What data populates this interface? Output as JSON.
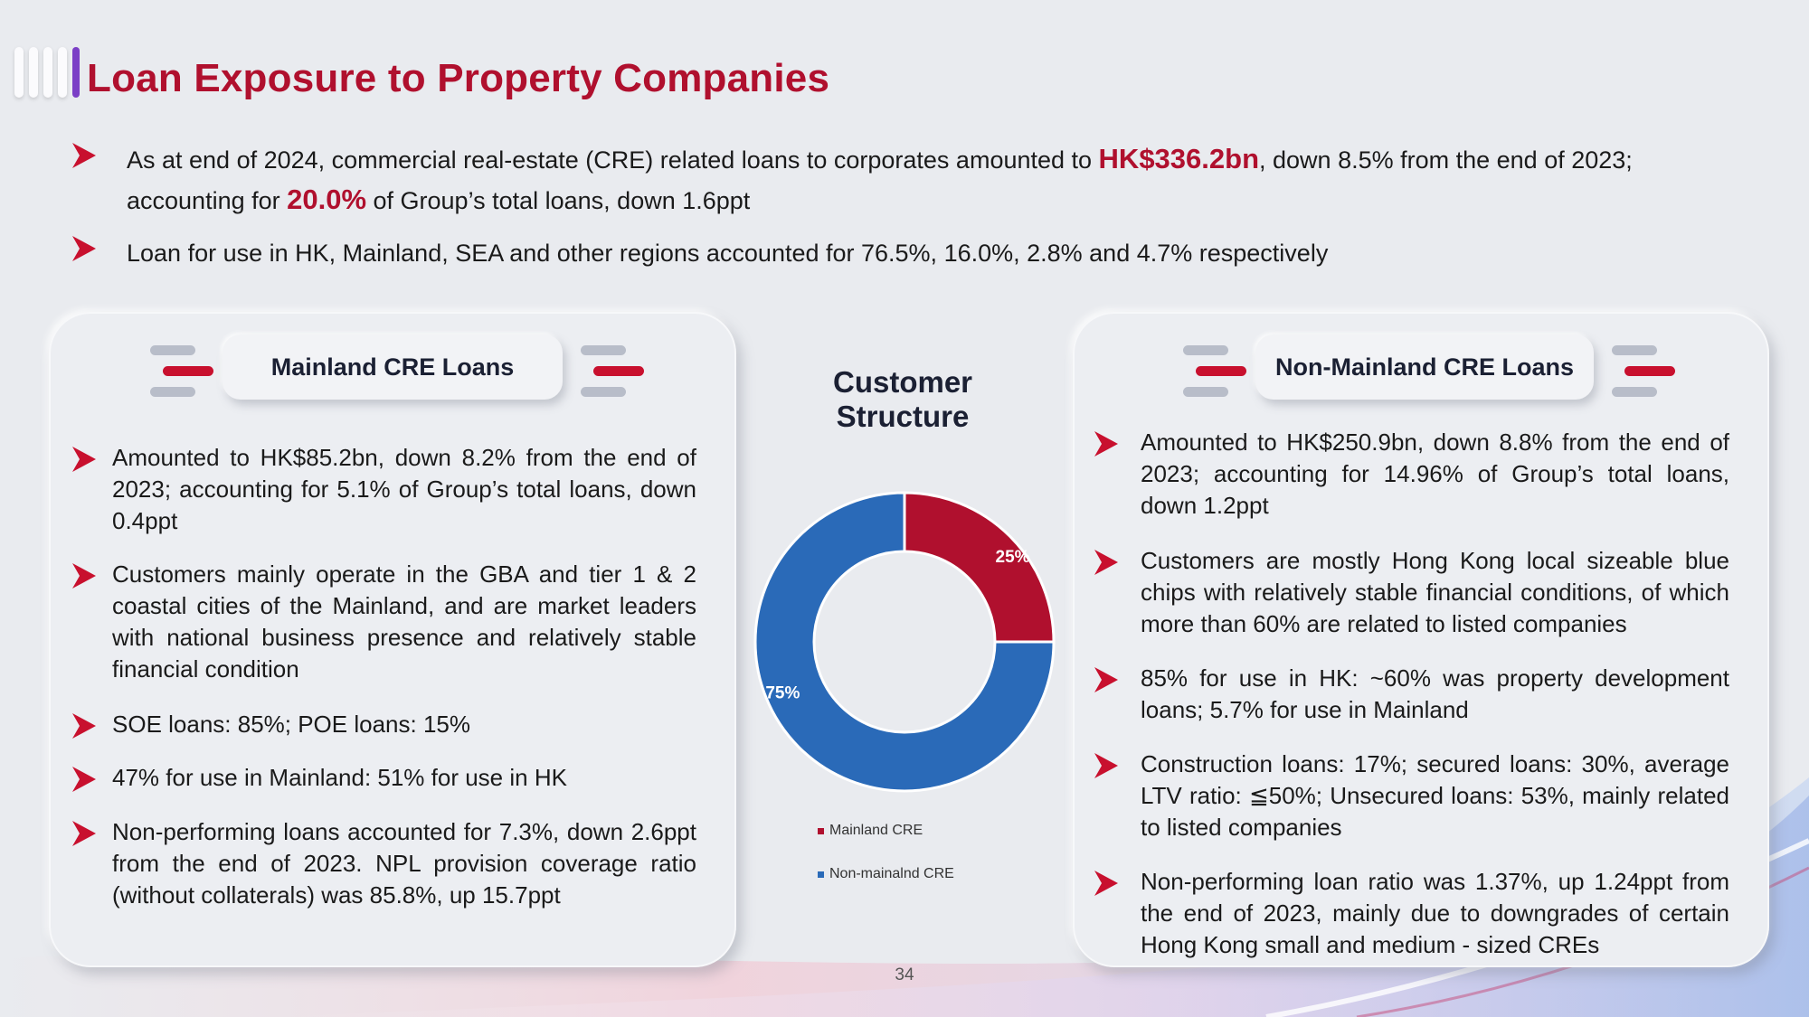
{
  "page": {
    "title": "Loan Exposure to Property Companies",
    "page_number": "34"
  },
  "top_bullets": [
    {
      "pre": "As at end of 2024, commercial real-estate (CRE) related loans to corporates amounted to ",
      "hl1": "HK$336.2bn",
      "mid": ", down 8.5% from the end of 2023; accounting for ",
      "hl2": "20.0%",
      "post": " of Group’s total loans, down 1.6ppt"
    },
    {
      "text": "Loan for use in HK, Mainland, SEA and other regions accounted for 76.5%, 16.0%, 2.8% and 4.7% respectively"
    }
  ],
  "left_panel": {
    "title": "Mainland CRE Loans",
    "bullets": [
      "Amounted to HK$85.2bn, down 8.2% from the end of 2023; accounting for 5.1% of Group’s total loans, down 0.4ppt",
      "Customers mainly operate in the GBA and tier 1 & 2 coastal cities of the Mainland, and are market leaders with national business presence and relatively stable financial condition",
      "SOE loans: 85%; POE loans: 15%",
      "47% for use in Mainland: 51% for use in HK",
      "Non-performing loans accounted for 7.3%, down 2.6ppt from the end of 2023. NPL provision coverage ratio (without collaterals) was 85.8%, up 15.7ppt"
    ]
  },
  "right_panel": {
    "title": "Non-Mainland CRE Loans",
    "bullets": [
      "Amounted to HK$250.9bn, down 8.8% from the end of 2023; accounting for 14.96% of Group’s total loans, down 1.2ppt",
      "Customers are mostly Hong Kong local sizeable blue chips with relatively stable financial conditions, of which more than 60% are related to listed companies",
      "85% for use in HK: ~60% was property development loans; 5.7% for use in Mainland",
      "Construction loans: 17%; secured loans: 30%, average LTV ratio: ≦50%; Unsecured loans: 53%, mainly related to listed companies",
      "Non-performing loan ratio was 1.37%, up 1.24ppt from the end of 2023, mainly due to downgrades of certain Hong Kong small and medium - sized CREs"
    ]
  },
  "chart_data": {
    "type": "pie",
    "title": "Customer Structure",
    "categories": [
      "Mainland CRE",
      "Non-mainalnd CRE"
    ],
    "values": [
      25,
      75
    ],
    "labels": [
      "25%",
      "75%"
    ],
    "colors": [
      "#b0102e",
      "#2a6ab8"
    ],
    "legend": "bottom"
  },
  "colors": {
    "accent_red": "#b0102e",
    "accent_blue": "#2a6ab8",
    "title_accent": "#7b3fc6"
  }
}
